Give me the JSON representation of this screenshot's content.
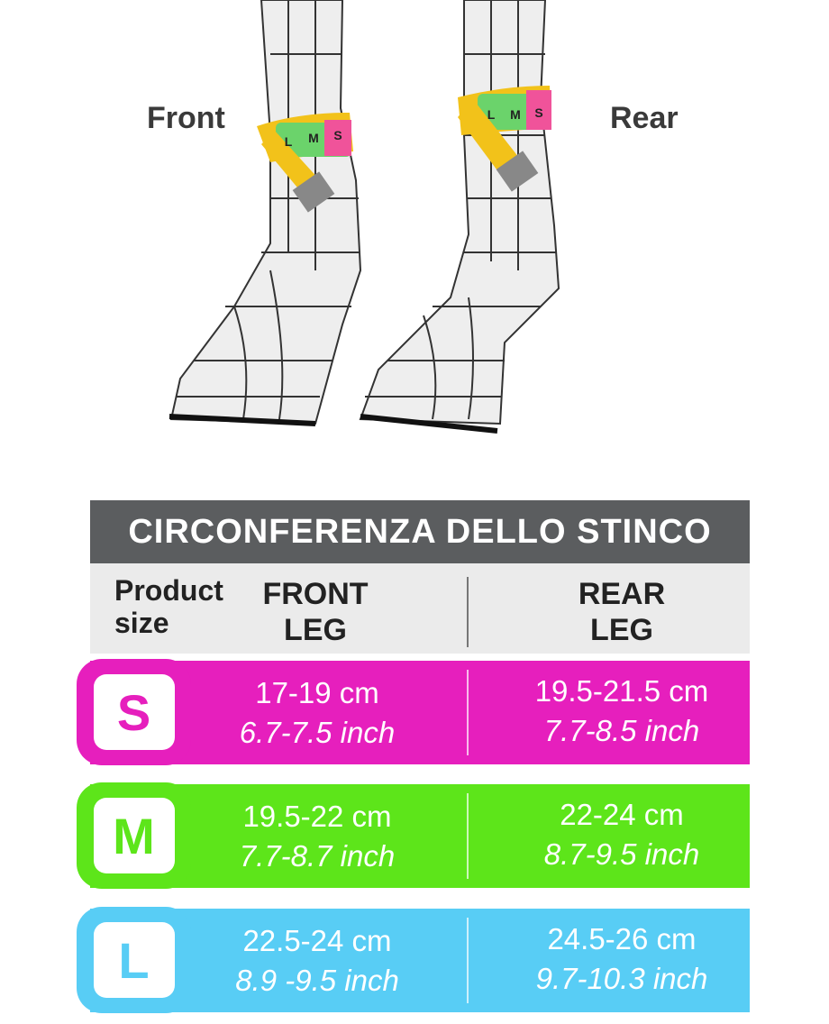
{
  "illustration": {
    "front_label": "Front",
    "rear_label": "Rear",
    "tape_front": [
      "L",
      "M",
      "S"
    ],
    "tape_rear": [
      "L",
      "M",
      "S"
    ]
  },
  "table": {
    "title": "CIRCONFERENZA DELLO STINCO",
    "header": {
      "product_size": [
        "Product",
        "size"
      ],
      "front_leg": [
        "FRONT",
        "LEG"
      ],
      "rear_leg": [
        "REAR",
        "LEG"
      ]
    },
    "rows": [
      {
        "size": "S",
        "front_cm": "17-19 cm",
        "front_inch": "6.7-7.5 inch",
        "rear_cm": "19.5-21.5 cm",
        "rear_inch": "7.7-8.5 inch"
      },
      {
        "size": "M",
        "front_cm": "19.5-22 cm",
        "front_inch": "7.7-8.7 inch",
        "rear_cm": "22-24 cm",
        "rear_inch": "8.7-9.5 inch"
      },
      {
        "size": "L",
        "front_cm": "22.5-24 cm",
        "front_inch": "8.9 -9.5 inch",
        "rear_cm": "24.5-26 cm",
        "rear_inch": "9.7-10.3 inch"
      }
    ]
  }
}
